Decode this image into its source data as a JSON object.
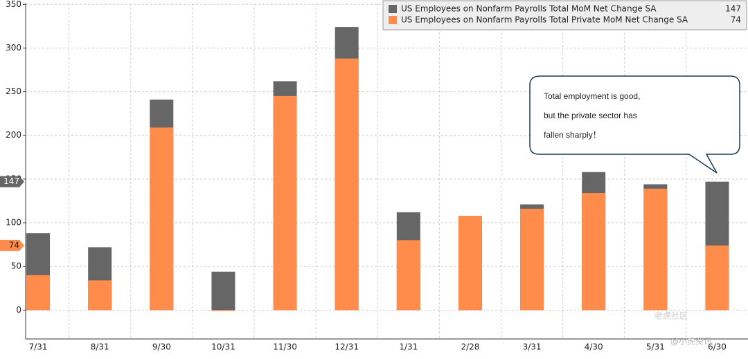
{
  "chart_data": {
    "type": "bar",
    "categories": [
      "7/31",
      "8/31",
      "9/30",
      "10/31",
      "11/30",
      "12/31",
      "1/31",
      "2/28",
      "3/31",
      "4/30",
      "5/31",
      "6/30"
    ],
    "series": [
      {
        "name": "US Employees on Nonfarm Payrolls Total MoM Net Change SA",
        "color": "#666666",
        "last_value": 147,
        "values": [
          88,
          72,
          241,
          44,
          262,
          324,
          112,
          106,
          121,
          158,
          144,
          147
        ]
      },
      {
        "name": "US Employees on Nonfarm Payrolls Total Private MoM Net Change SA",
        "color": "#ff8c4a",
        "last_value": 74,
        "values": [
          40,
          34,
          209,
          -1,
          245,
          288,
          80,
          108,
          116,
          134,
          139,
          74
        ]
      }
    ],
    "ylim": [
      -33,
      351
    ],
    "yticks": [
      0,
      50,
      100,
      150,
      200,
      250,
      300,
      350
    ],
    "grid": true,
    "legend": "top-right",
    "annotation": [
      "Total employment is good,",
      "but the private sector has",
      "fallen sharply！"
    ],
    "watermark": [
      "老虎社区",
      "@小虎资讯"
    ]
  }
}
